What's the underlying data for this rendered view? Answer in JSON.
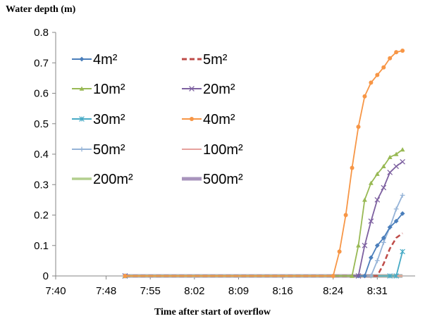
{
  "chart_data": {
    "type": "line",
    "title": "",
    "ylabel": "Water depth (m)",
    "xlabel": "Time after start of overflow",
    "ylim": [
      0,
      0.8
    ],
    "yticks": [
      "0",
      "0.1",
      "0.2",
      "0.3",
      "0.4",
      "0.5",
      "0.6",
      "0.7",
      "0.8"
    ],
    "xlim": [
      "7:40",
      "8:37"
    ],
    "xticks": [
      "7:40",
      "7:48",
      "7:55",
      "8:02",
      "8:09",
      "8:16",
      "8:24",
      "8:31"
    ],
    "grid": false,
    "legend": "upper-left, inside plot",
    "series": [
      {
        "name": "4m²",
        "color": "#4a7ebb",
        "marker": "diamond",
        "dash": false,
        "points": [
          [
            "7:51",
            0
          ],
          [
            "8:28",
            0
          ],
          [
            "8:29",
            0
          ],
          [
            "8:30",
            0.06
          ],
          [
            "8:31",
            0.1
          ],
          [
            "8:32",
            0.125
          ],
          [
            "8:33",
            0.16
          ],
          [
            "8:34",
            0.18
          ],
          [
            "8:35",
            0.205
          ]
        ]
      },
      {
        "name": "5m²",
        "color": "#be4b48",
        "marker": "none",
        "dash": true,
        "points": [
          [
            "7:51",
            0
          ],
          [
            "8:30",
            0
          ],
          [
            "8:31",
            0
          ],
          [
            "8:32",
            0.04
          ],
          [
            "8:33",
            0.09
          ],
          [
            "8:34",
            0.125
          ],
          [
            "8:35",
            0.14
          ]
        ]
      },
      {
        "name": "10m²",
        "color": "#98b954",
        "marker": "triangle",
        "dash": false,
        "points": [
          [
            "7:51",
            0
          ],
          [
            "8:27",
            0
          ],
          [
            "8:28",
            0.1
          ],
          [
            "8:29",
            0.25
          ],
          [
            "8:30",
            0.305
          ],
          [
            "8:31",
            0.335
          ],
          [
            "8:32",
            0.36
          ],
          [
            "8:33",
            0.39
          ],
          [
            "8:34",
            0.4
          ],
          [
            "8:35",
            0.415
          ]
        ]
      },
      {
        "name": "20m²",
        "color": "#7d60a0",
        "marker": "x",
        "dash": false,
        "points": [
          [
            "7:51",
            0
          ],
          [
            "8:28",
            0
          ],
          [
            "8:29",
            0.1
          ],
          [
            "8:30",
            0.18
          ],
          [
            "8:31",
            0.25
          ],
          [
            "8:32",
            0.29
          ],
          [
            "8:33",
            0.34
          ],
          [
            "8:34",
            0.36
          ],
          [
            "8:35",
            0.375
          ]
        ]
      },
      {
        "name": "30m²",
        "color": "#46aac5",
        "marker": "star",
        "dash": false,
        "points": [
          [
            "7:51",
            0
          ],
          [
            "8:33",
            0
          ],
          [
            "8:34",
            0
          ],
          [
            "8:35",
            0.08
          ]
        ]
      },
      {
        "name": "40m²",
        "color": "#f79646",
        "marker": "circle",
        "dash": false,
        "points": [
          [
            "7:51",
            0
          ],
          [
            "8:24",
            0
          ],
          [
            "8:25",
            0.08
          ],
          [
            "8:26",
            0.2
          ],
          [
            "8:27",
            0.355
          ],
          [
            "8:28",
            0.49
          ],
          [
            "8:29",
            0.59
          ],
          [
            "8:30",
            0.635
          ],
          [
            "8:31",
            0.66
          ],
          [
            "8:32",
            0.685
          ],
          [
            "8:33",
            0.715
          ],
          [
            "8:34",
            0.735
          ],
          [
            "8:35",
            0.74
          ]
        ]
      },
      {
        "name": "50m²",
        "color": "#95b3d7",
        "marker": "plus",
        "dash": false,
        "points": [
          [
            "7:51",
            0
          ],
          [
            "8:30",
            0
          ],
          [
            "8:31",
            0.05
          ],
          [
            "8:32",
            0.11
          ],
          [
            "8:33",
            0.16
          ],
          [
            "8:34",
            0.22
          ],
          [
            "8:35",
            0.265
          ]
        ]
      },
      {
        "name": "100m²",
        "color": "#e6a19d",
        "marker": "none",
        "dash": false,
        "points": [
          [
            "7:51",
            0
          ],
          [
            "8:35",
            0
          ]
        ]
      },
      {
        "name": "200m²",
        "color": "#b3cf8e",
        "marker": "none",
        "dash": false,
        "points": [
          [
            "7:51",
            0
          ],
          [
            "8:35",
            0
          ]
        ]
      },
      {
        "name": "500m²",
        "color": "#a894bd",
        "marker": "none",
        "dash": false,
        "points": [
          [
            "7:51",
            0
          ],
          [
            "8:35",
            0
          ]
        ]
      }
    ]
  }
}
